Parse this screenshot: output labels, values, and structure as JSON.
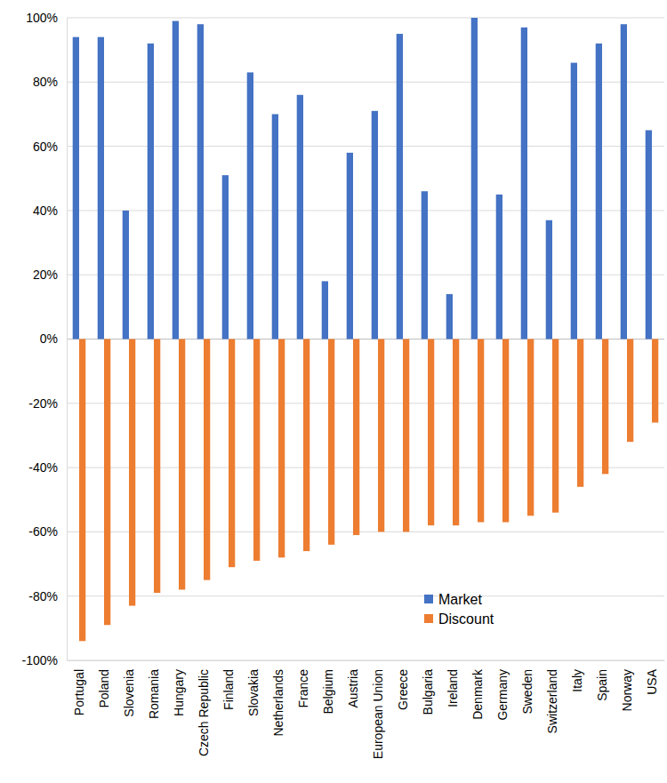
{
  "chart_data": {
    "type": "bar",
    "categories": [
      "Portugal",
      "Poland",
      "Slovenia",
      "Romania",
      "Hungary",
      "Czech Republic",
      "Finland",
      "Slovakia",
      "Netherlands",
      "France",
      "Belgium",
      "Austria",
      "European Union",
      "Greece",
      "Bulgaria",
      "Ireland",
      "Denmark",
      "Germany",
      "Sweden",
      "Switzerland",
      "Italy",
      "Spain",
      "Norway",
      "USA"
    ],
    "series": [
      {
        "name": "Market",
        "color": "#4472c4",
        "values": [
          94,
          94,
          40,
          92,
          99,
          98,
          51,
          83,
          70,
          76,
          18,
          58,
          71,
          95,
          46,
          14,
          100,
          45,
          97,
          37,
          86,
          92,
          98,
          65
        ]
      },
      {
        "name": "Discount",
        "color": "#ed7d31",
        "values": [
          -94,
          -89,
          -83,
          -79,
          -78,
          -75,
          -71,
          -69,
          -68,
          -66,
          -64,
          -61,
          -60,
          -60,
          -58,
          -58,
          -57,
          -57,
          -55,
          -54,
          -46,
          -42,
          -32,
          -26
        ]
      }
    ],
    "ylim": [
      -100,
      100
    ],
    "yticks": [
      {
        "value": -100,
        "label": "-100%"
      },
      {
        "value": -80,
        "label": "-80%"
      },
      {
        "value": -60,
        "label": "-60%"
      },
      {
        "value": -40,
        "label": "-40%"
      },
      {
        "value": -20,
        "label": "-20%"
      },
      {
        "value": 0,
        "label": "0%"
      },
      {
        "value": 20,
        "label": "20%"
      },
      {
        "value": 40,
        "label": "40%"
      },
      {
        "value": 60,
        "label": "60%"
      },
      {
        "value": 80,
        "label": "80%"
      },
      {
        "value": 100,
        "label": "100%"
      }
    ],
    "grid": true,
    "legend": "lower right"
  }
}
